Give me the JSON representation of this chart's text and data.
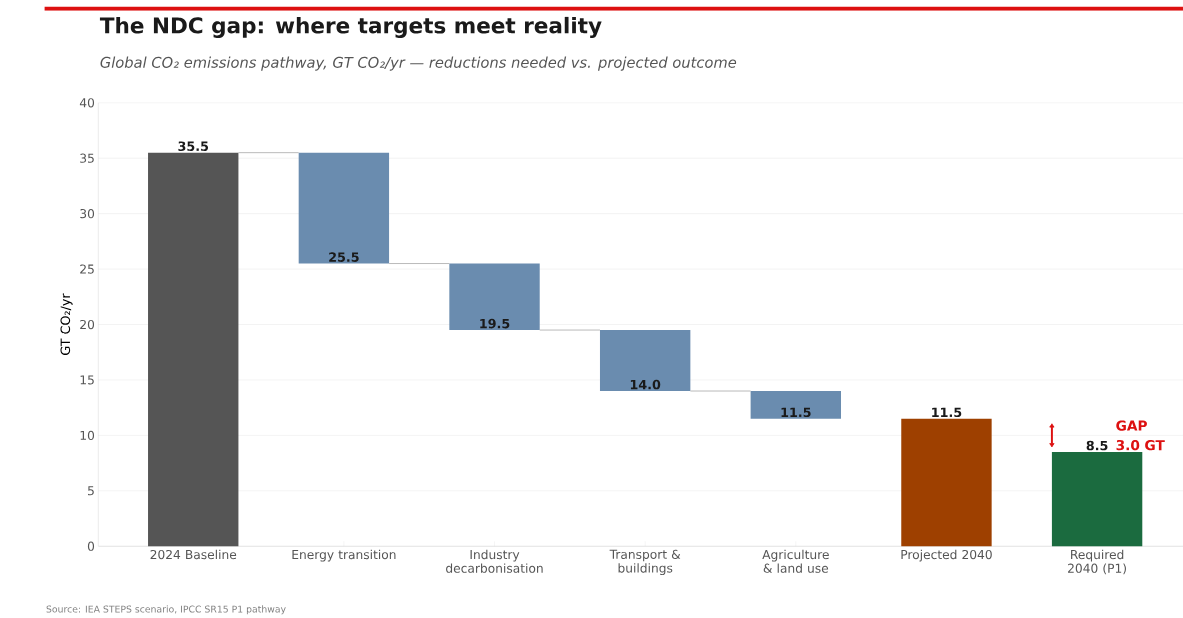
{
  "chart_data": {
    "type": "bar",
    "title": "The NDC gap: where targets meet reality",
    "subtitle": "Global CO₂ emissions pathway, GT CO₂/yr — reductions needed vs. projected outcome",
    "ylabel": "GT CO₂/yr",
    "categories": [
      "2024 Baseline",
      "Energy transition",
      "Industry decarbonisation",
      "Transport & buildings",
      "Agriculture & land use",
      "Projected 2040",
      "Required 2040 (P1)"
    ],
    "base": [
      0,
      35.5,
      25.5,
      19.5,
      14.0,
      0,
      0
    ],
    "values": [
      35.5,
      -10.0,
      -6.0,
      -5.5,
      -2.5,
      11.5,
      8.5
    ],
    "colors": [
      "#555555",
      "#6a8caf",
      "#6a8caf",
      "#6a8caf",
      "#6a8caf",
      "#9e4000",
      "#1b6b3f"
    ],
    "value_labels": [
      "35.5",
      "25.5",
      "19.5",
      "14.0",
      "11.5",
      "11.5",
      "8.5"
    ],
    "ylim": [
      0,
      40
    ],
    "yticks": [
      0,
      5,
      10,
      15,
      20,
      25,
      30,
      35,
      40
    ],
    "grid": "y",
    "annotations": [
      "Source: IEA STEPS scenario, IPCC SR15 P1 pathway",
      "GAP 3.0 GT"
    ]
  }
}
